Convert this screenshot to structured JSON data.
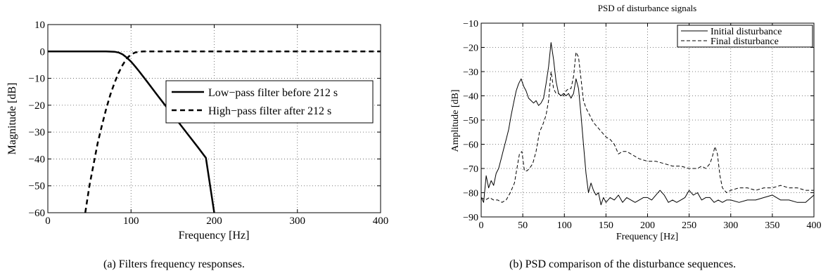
{
  "chart_data": [
    {
      "type": "line",
      "title": "",
      "xlabel": "Frequency [Hz]",
      "ylabel": "Magnitude [dB]",
      "xlim": [
        0,
        400
      ],
      "ylim": [
        -60,
        10
      ],
      "xticks": [
        0,
        100,
        200,
        300,
        400
      ],
      "yticks": [
        10,
        0,
        -10,
        -20,
        -30,
        -40,
        -50,
        -60
      ],
      "grid": true,
      "legend_position": "right",
      "caption": "(a)  Filters frequency responses.",
      "series": [
        {
          "name": "Low−pass filter before 212 s",
          "style": "solid",
          "x": [
            0,
            20,
            40,
            60,
            70,
            80,
            85,
            90,
            95,
            100,
            105,
            110,
            120,
            130,
            140,
            150,
            160,
            170,
            180,
            190,
            200
          ],
          "y": [
            0,
            0,
            0,
            0,
            0,
            -0.1,
            -0.4,
            -1.1,
            -2.3,
            -3.8,
            -5.6,
            -7.5,
            -11.5,
            -15.6,
            -19.6,
            -23.5,
            -27.5,
            -31.5,
            -35.5,
            -39.6,
            -60
          ]
        },
        {
          "name": "High−pass filter after 212 s",
          "style": "dashed",
          "x": [
            45,
            50,
            55,
            60,
            65,
            70,
            75,
            80,
            85,
            90,
            95,
            100,
            105,
            110,
            115,
            120,
            140,
            200,
            300,
            400
          ],
          "y": [
            -60,
            -50,
            -42,
            -34,
            -27.5,
            -21.5,
            -16.2,
            -11.8,
            -8,
            -5,
            -2.6,
            -1.1,
            -0.4,
            -0.1,
            0,
            0,
            0,
            0,
            0,
            0
          ]
        }
      ]
    },
    {
      "type": "line",
      "title": "PSD of disturbance signals",
      "xlabel": "Frequency [Hz]",
      "ylabel": "Amplitude [dB]",
      "xlim": [
        0,
        400
      ],
      "ylim": [
        -90,
        -10
      ],
      "xticks": [
        0,
        50,
        100,
        150,
        200,
        250,
        300,
        350,
        400
      ],
      "yticks": [
        -10,
        -20,
        -30,
        -40,
        -50,
        -60,
        -70,
        -80,
        -90
      ],
      "grid": true,
      "legend_position": "top-right",
      "caption": "(b)  PSD comparison of the disturbance sequences.",
      "series": [
        {
          "name": "Initial disturbance",
          "style": "solid",
          "x": [
            0,
            3,
            6,
            9,
            12,
            15,
            18,
            21,
            24,
            27,
            30,
            33,
            36,
            39,
            42,
            45,
            48,
            51,
            54,
            57,
            60,
            63,
            66,
            69,
            72,
            75,
            78,
            81,
            84,
            87,
            90,
            93,
            96,
            99,
            102,
            105,
            108,
            111,
            114,
            117,
            120,
            123,
            126,
            129,
            132,
            135,
            138,
            141,
            144,
            147,
            150,
            155,
            160,
            165,
            170,
            175,
            180,
            185,
            190,
            195,
            200,
            205,
            210,
            215,
            220,
            225,
            230,
            235,
            240,
            245,
            250,
            255,
            260,
            265,
            270,
            275,
            280,
            285,
            290,
            295,
            300,
            310,
            320,
            330,
            340,
            350,
            360,
            370,
            380,
            390,
            400
          ],
          "y": [
            -82,
            -84,
            -73,
            -78,
            -75,
            -77,
            -72,
            -70,
            -66,
            -62,
            -58,
            -54,
            -48,
            -43,
            -38,
            -35,
            -33,
            -36,
            -38,
            -41,
            -42,
            -43,
            -42,
            -44,
            -43,
            -41,
            -35,
            -28,
            -18,
            -25,
            -34,
            -39,
            -40,
            -39,
            -40,
            -39,
            -41,
            -39,
            -33,
            -37,
            -48,
            -60,
            -72,
            -80,
            -76,
            -79,
            -81,
            -80,
            -85,
            -82,
            -84,
            -82,
            -83,
            -81,
            -84,
            -82,
            -83,
            -84,
            -83,
            -82,
            -82,
            -83,
            -81,
            -79,
            -81,
            -84,
            -83,
            -84,
            -83,
            -82,
            -79,
            -81,
            -80,
            -83,
            -82,
            -82,
            -84,
            -83,
            -84,
            -83,
            -83,
            -84,
            -83,
            -83,
            -82,
            -81,
            -83,
            -83,
            -84,
            -84,
            -81
          ]
        },
        {
          "name": "Final disturbance",
          "style": "dashed",
          "x": [
            0,
            5,
            10,
            15,
            20,
            25,
            30,
            35,
            40,
            43,
            46,
            49,
            52,
            55,
            58,
            62,
            66,
            70,
            74,
            78,
            81,
            84,
            87,
            90,
            93,
            96,
            99,
            102,
            105,
            108,
            111,
            114,
            117,
            120,
            123,
            126,
            129,
            132,
            135,
            140,
            145,
            150,
            155,
            160,
            165,
            170,
            175,
            180,
            190,
            200,
            210,
            220,
            230,
            240,
            250,
            260,
            265,
            270,
            275,
            278,
            281,
            284,
            287,
            290,
            295,
            300,
            310,
            320,
            330,
            340,
            350,
            360,
            370,
            380,
            390,
            400
          ],
          "y": [
            -82,
            -83,
            -82,
            -83,
            -83,
            -84,
            -83,
            -80,
            -76,
            -70,
            -64,
            -63,
            -71,
            -71,
            -70,
            -68,
            -63,
            -55,
            -52,
            -48,
            -42,
            -30,
            -37,
            -39,
            -39,
            -40,
            -40,
            -38,
            -37,
            -37,
            -32,
            -22,
            -24,
            -33,
            -42,
            -45,
            -47,
            -49,
            -51,
            -53,
            -55,
            -57,
            -58,
            -60,
            -64,
            -63,
            -63,
            -64,
            -66,
            -67,
            -67,
            -68,
            -69,
            -69,
            -70,
            -70,
            -69,
            -70,
            -68,
            -65,
            -61,
            -64,
            -73,
            -78,
            -80,
            -79,
            -78,
            -78,
            -79,
            -78,
            -78,
            -77,
            -78,
            -78,
            -79,
            -79
          ]
        }
      ]
    }
  ]
}
